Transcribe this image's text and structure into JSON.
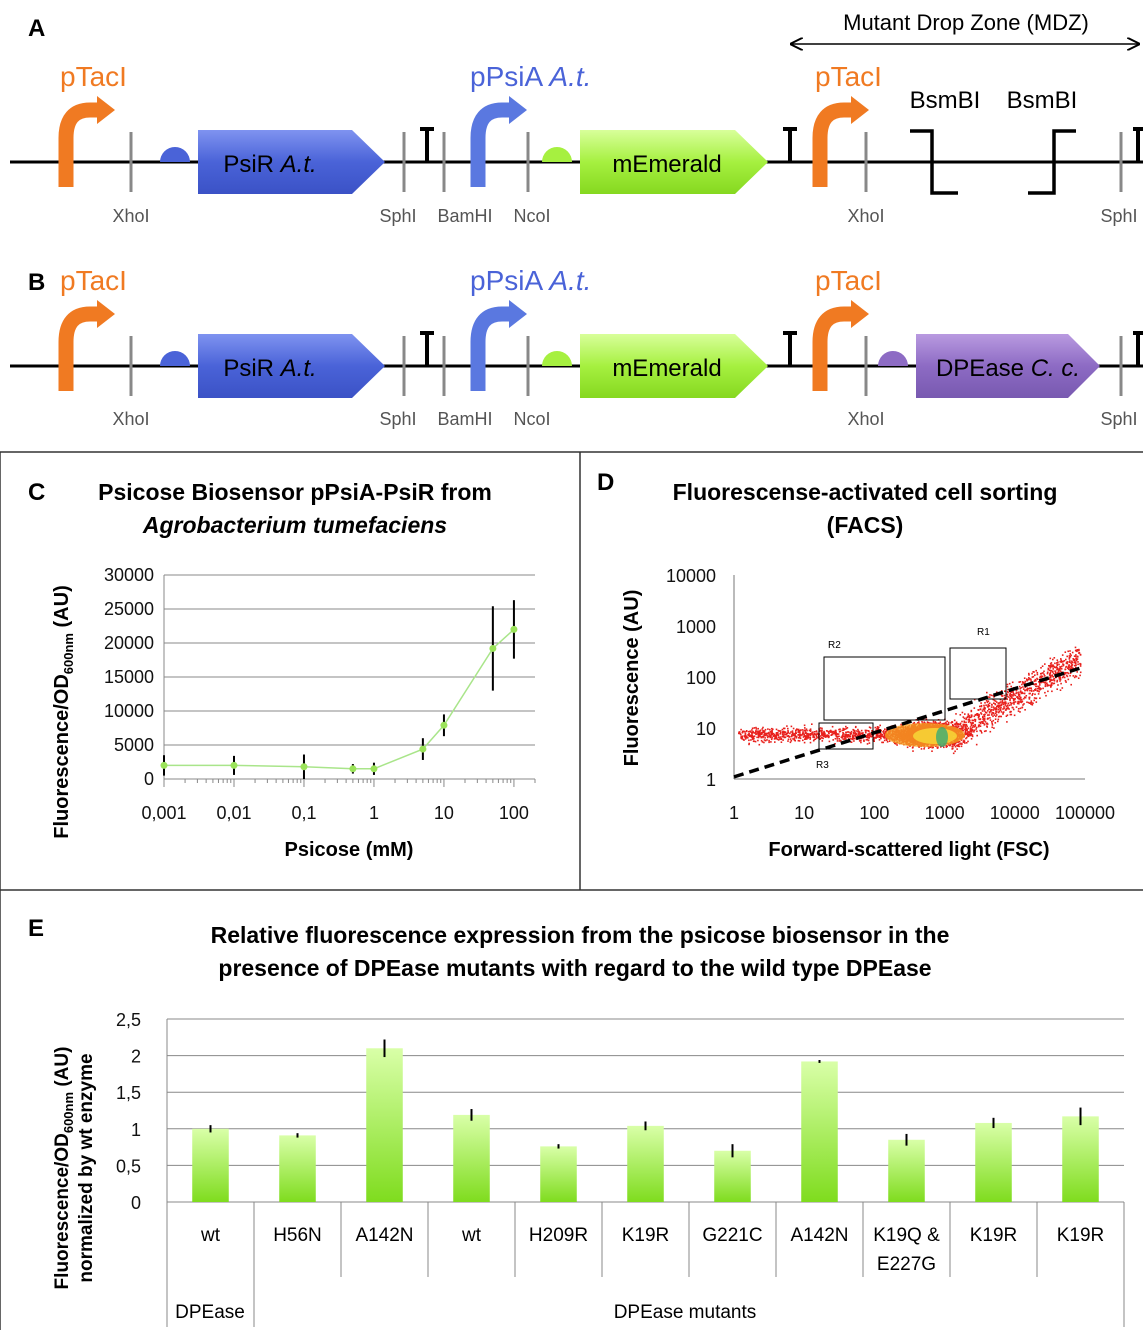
{
  "panels": {
    "A": {
      "letter": "A",
      "mdz_label": "Mutant Drop Zone (MDZ)",
      "promoter1": "pTacI",
      "promoter2": "pPsiA",
      "promoter2_italic": "A.t.",
      "promoter3": "pTacI",
      "gene1": "PsiR",
      "gene1_italic": "A.t.",
      "gene2": "mEmerald",
      "bsmbi1": "BsmBI",
      "bsmbi2": "BsmBI",
      "sites": [
        "XhoI",
        "SphI",
        "BamHI",
        "NcoI",
        "XhoI",
        "SphI"
      ]
    },
    "B": {
      "letter": "B",
      "promoter1": "pTacI",
      "promoter2": "pPsiA",
      "promoter2_italic": "A.t.",
      "promoter3": "pTacI",
      "gene1": "PsiR",
      "gene1_italic": "A.t.",
      "gene2": "mEmerald",
      "gene3": "DPEase",
      "gene3_italic": "C. c.",
      "sites": [
        "XhoI",
        "SphI",
        "BamHI",
        "NcoI",
        "XhoI",
        "SphI"
      ]
    },
    "C": {
      "letter": "C",
      "title_line1": "Psicose Biosensor pPsiA-PsiR from",
      "title_line2": "Agrobacterium tumefaciens",
      "ylabel_main": "Fluorescence/OD",
      "ylabel_sub": "600nm",
      "ylabel_tail": " (AU)",
      "xlabel": "Psicose (mM)"
    },
    "D": {
      "letter": "D",
      "title_line1": "Fluorescense-activated cell sorting",
      "title_line2": "(FACS)",
      "ylabel": "Fluorescence (AU)",
      "xlabel": "Forward-scattered light (FSC)",
      "gates": [
        "R2",
        "R1",
        "R3"
      ]
    },
    "E": {
      "letter": "E",
      "title_line1": "Relative fluorescence expression from the psicose biosensor in the",
      "title_line2": "presence of DPEase mutants with regard to the wild type DPEase",
      "ylabel_main": "Fluorescence/OD",
      "ylabel_sub": "600nm",
      "ylabel_tail": " (AU)",
      "ylabel_line2": "normalized by wt enzyme",
      "group1": "DPEase",
      "group2": "DPEase mutants"
    }
  },
  "chart_data": [
    {
      "type": "line",
      "panel": "C",
      "x": [
        0.001,
        0.01,
        0.1,
        0.5,
        1,
        5,
        10,
        50,
        100
      ],
      "y": [
        2000,
        2000,
        1800,
        1500,
        1500,
        4400,
        7900,
        19200,
        22000
      ],
      "err": [
        1500,
        1400,
        1800,
        700,
        900,
        1600,
        1600,
        6200,
        4300
      ],
      "xticks": [
        "0,001",
        "0,01",
        "0,1",
        "1",
        "10",
        "100"
      ],
      "xtick_values": [
        0.001,
        0.01,
        0.1,
        1,
        10,
        100
      ],
      "yticks": [
        "0",
        "5000",
        "10000",
        "15000",
        "20000",
        "25000",
        "30000"
      ],
      "ylim": [
        0,
        30000
      ],
      "xscale": "log",
      "grid": true
    },
    {
      "type": "scatter",
      "panel": "D",
      "xticks": [
        "1",
        "10",
        "100",
        "1000",
        "10000",
        "100000"
      ],
      "yticks": [
        "1",
        "10",
        "100",
        "1000",
        "10000"
      ],
      "xscale": "log",
      "yscale": "log",
      "xlim": [
        1,
        100000
      ],
      "ylim": [
        1,
        10000
      ],
      "trendline": {
        "x": [
          1,
          100000
        ],
        "y": [
          1.1,
          160
        ]
      }
    },
    {
      "type": "bar",
      "panel": "E",
      "categories": [
        "wt",
        "H56N",
        "A142N",
        "wt",
        "H209R",
        "K19R",
        "G221C",
        "A142N",
        "K19Q & E227G",
        "K19R",
        "K19R"
      ],
      "values": [
        1.0,
        0.91,
        2.1,
        1.19,
        0.76,
        1.04,
        0.7,
        1.92,
        0.85,
        1.08,
        1.17
      ],
      "err": [
        0.05,
        0.03,
        0.12,
        0.08,
        0.03,
        0.06,
        0.09,
        0.02,
        0.08,
        0.07,
        0.12
      ],
      "yticks": [
        "0",
        "0,5",
        "1",
        "1,5",
        "2",
        "2,5"
      ],
      "ylim": [
        0,
        2.5
      ],
      "grid": true
    }
  ]
}
